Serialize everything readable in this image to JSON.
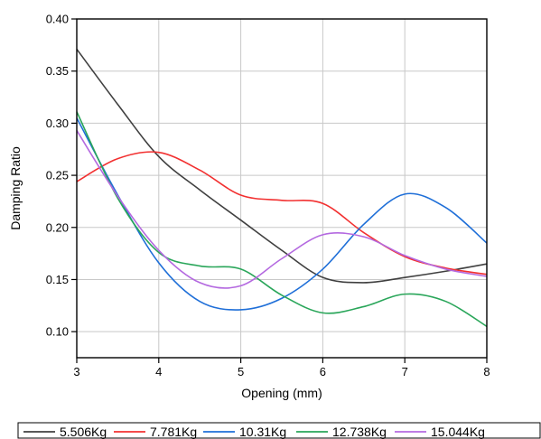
{
  "chart_data": {
    "type": "line",
    "title": "",
    "xlabel": "Opening (mm)",
    "ylabel": "Damping Ratio",
    "xlim": [
      3,
      8
    ],
    "ylim": [
      0.075,
      0.4
    ],
    "x_ticks": [
      3,
      4,
      5,
      6,
      7,
      8
    ],
    "x_tick_labels": [
      "3",
      "4",
      "5",
      "6",
      "7",
      "8"
    ],
    "y_ticks": [
      0.1,
      0.15,
      0.2,
      0.25,
      0.3,
      0.35,
      0.4
    ],
    "y_tick_labels": [
      "0.10",
      "0.15",
      "0.20",
      "0.25",
      "0.30",
      "0.35",
      "0.40"
    ],
    "grid": true,
    "legend_position": "bottom",
    "series": [
      {
        "name": "5.506Kg",
        "color": "#404040",
        "x": [
          3,
          3.5,
          4,
          4.5,
          5,
          5.5,
          6,
          6.5,
          7,
          7.5,
          8
        ],
        "y": [
          0.371,
          0.318,
          0.268,
          0.236,
          0.207,
          0.178,
          0.152,
          0.147,
          0.152,
          0.158,
          0.165
        ]
      },
      {
        "name": "7.781Kg",
        "color": "#f23030",
        "x": [
          3,
          3.5,
          4,
          4.5,
          5,
          5.5,
          6,
          6.5,
          7,
          7.5,
          8
        ],
        "y": [
          0.244,
          0.266,
          0.272,
          0.255,
          0.231,
          0.226,
          0.223,
          0.195,
          0.172,
          0.161,
          0.155
        ]
      },
      {
        "name": "10.31Kg",
        "color": "#1f6fd8",
        "x": [
          3,
          3.5,
          4,
          4.5,
          5,
          5.5,
          6,
          6.5,
          7,
          7.5,
          8
        ],
        "y": [
          0.305,
          0.231,
          0.166,
          0.129,
          0.121,
          0.132,
          0.16,
          0.203,
          0.232,
          0.219,
          0.185
        ]
      },
      {
        "name": "12.738Kg",
        "color": "#2aa65a",
        "x": [
          3,
          3.5,
          4,
          4.5,
          5,
          5.5,
          6,
          6.5,
          7,
          7.5,
          8
        ],
        "y": [
          0.311,
          0.228,
          0.176,
          0.163,
          0.16,
          0.135,
          0.118,
          0.124,
          0.136,
          0.129,
          0.105
        ]
      },
      {
        "name": "15.044Kg",
        "color": "#b469e0",
        "x": [
          3,
          3.5,
          4,
          4.5,
          5,
          5.5,
          6,
          6.5,
          7,
          7.5,
          8
        ],
        "y": [
          0.293,
          0.23,
          0.178,
          0.147,
          0.144,
          0.17,
          0.193,
          0.191,
          0.173,
          0.16,
          0.153
        ]
      }
    ]
  }
}
